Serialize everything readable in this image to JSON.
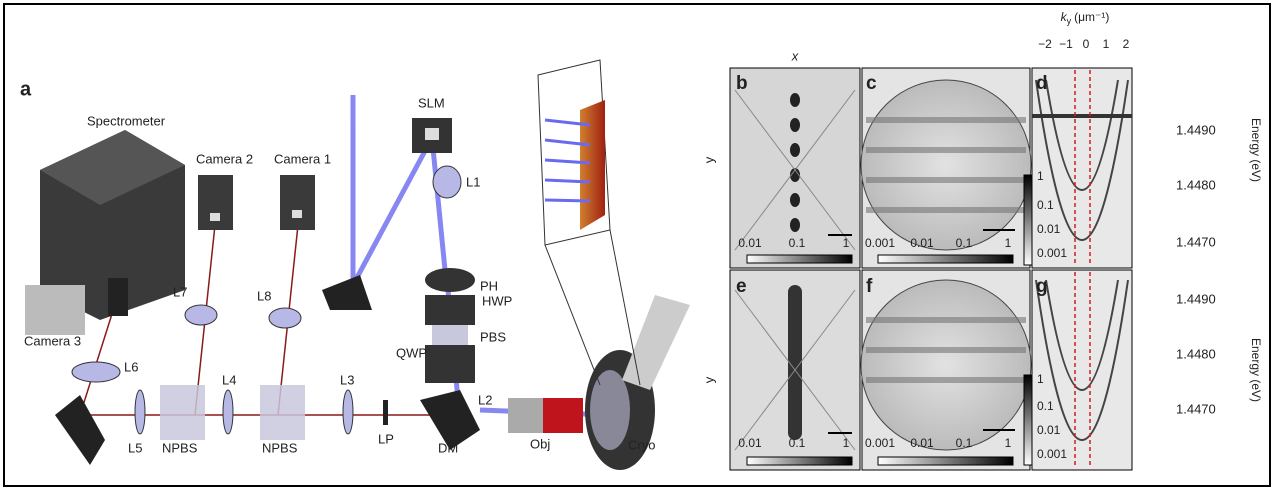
{
  "setup": {
    "panel": "a",
    "spectrometer": "Spectrometer",
    "camera_1": "Camera 1",
    "camera_2": "Camera 2",
    "camera_3": "Camera 3",
    "slm": "SLM",
    "l1": "L1",
    "ph": "PH",
    "hwp": "HWP",
    "pbs": "PBS",
    "qwp": "QWP",
    "l2": "L2",
    "l3": "L3",
    "l4": "L4",
    "l5": "L5",
    "l6": "L6",
    "l7": "L7",
    "l8": "L8",
    "npbs_1": "NPBS",
    "npbs_2": "NPBS",
    "lp": "LP",
    "dm": "DM",
    "obj": "Obj",
    "cryo": "Cryo"
  },
  "measurements": {
    "panels": {
      "b": "b",
      "c": "c",
      "d": "d",
      "e": "e",
      "f": "f",
      "g": "g"
    },
    "x_label": "x",
    "y_label_top": "y",
    "y_label_bottom": "y",
    "ky_axis": {
      "symbol": "k",
      "subscript": "y",
      "unit": "(μm⁻¹)",
      "ticks": [
        "−2",
        "−1",
        "0",
        "1",
        "2"
      ]
    },
    "energy_top": {
      "label": "Energy (eV)",
      "ticks": [
        "1.4490",
        "1.4480",
        "1.4470"
      ]
    },
    "energy_bottom": {
      "label": "Energy (eV)",
      "ticks": [
        "1.4490",
        "1.4480",
        "1.4470"
      ]
    },
    "colorbar_b": [
      "0.01",
      "0.1",
      "1"
    ],
    "colorbar_c": [
      "0.001",
      "0.01",
      "0.1",
      "1"
    ],
    "colorbar_d": [
      "1",
      "0.1",
      "0.01",
      "0.001"
    ],
    "colorbar_e": [
      "0.01",
      "0.1",
      "1"
    ],
    "colorbar_f": [
      "0.001",
      "0.01",
      "0.1",
      "1"
    ],
    "colorbar_g": [
      "1",
      "0.1",
      "0.01",
      "0.001"
    ]
  }
}
